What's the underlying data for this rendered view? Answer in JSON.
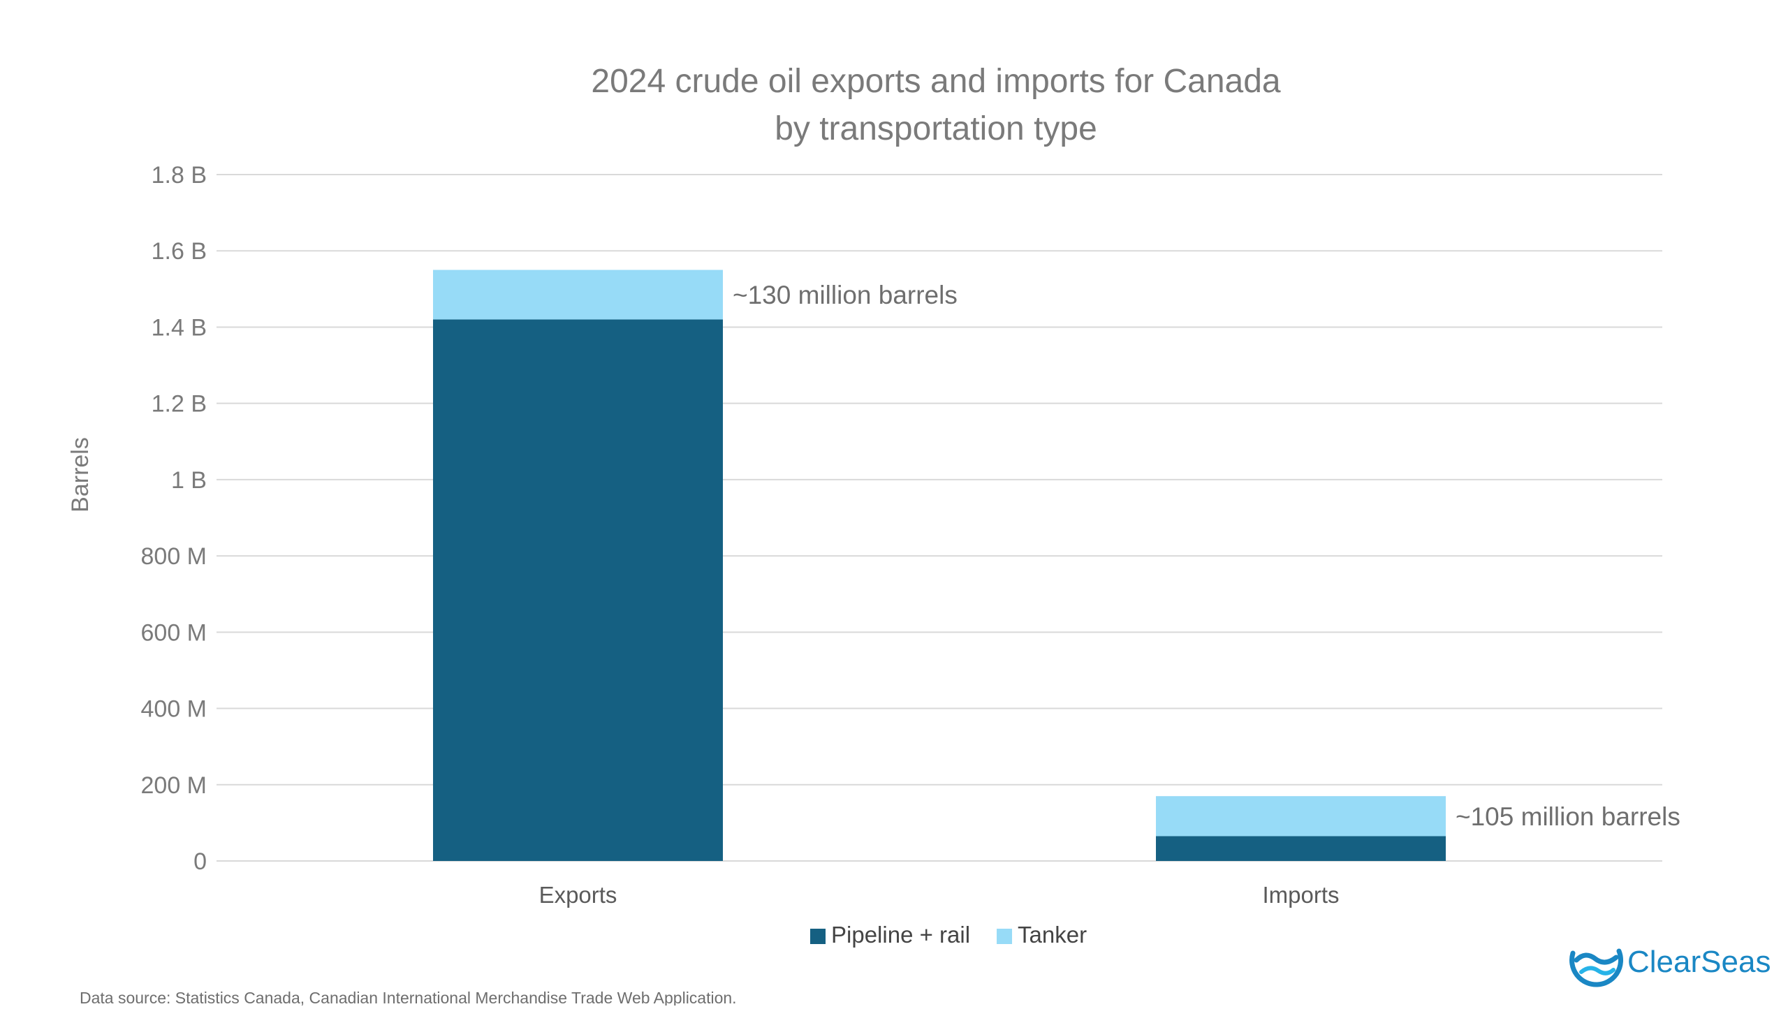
{
  "chart_data": {
    "type": "bar",
    "stacked": true,
    "title": [
      "2024 crude oil exports and imports for Canada",
      "by transportation type"
    ],
    "ylabel": "Barrels",
    "xlabel": "",
    "ylim": [
      0,
      1800000000
    ],
    "yticks": [
      {
        "value": 0,
        "label": "0"
      },
      {
        "value": 200000000,
        "label": "200 M"
      },
      {
        "value": 400000000,
        "label": "400 M"
      },
      {
        "value": 600000000,
        "label": "600 M"
      },
      {
        "value": 800000000,
        "label": "800 M"
      },
      {
        "value": 1000000000,
        "label": "1 B"
      },
      {
        "value": 1200000000,
        "label": "1.2 B"
      },
      {
        "value": 1400000000,
        "label": "1.4 B"
      },
      {
        "value": 1600000000,
        "label": "1.6 B"
      },
      {
        "value": 1800000000,
        "label": "1.8 B"
      }
    ],
    "grid": true,
    "categories": [
      "Exports",
      "Imports"
    ],
    "series": [
      {
        "name": "Pipeline + rail",
        "color": "#156082",
        "values": [
          1420000000,
          65000000
        ]
      },
      {
        "name": "Tanker",
        "color": "#97dbf7",
        "values": [
          130000000,
          105000000
        ]
      }
    ],
    "annotations": [
      {
        "category": "Exports",
        "text": "~130 million barrels"
      },
      {
        "category": "Imports",
        "text": "~105 million barrels"
      }
    ],
    "legend": "bottom-center"
  },
  "source": "Data source: Statistics Canada, Canadian International Merchandise Trade Web Application.",
  "brand": {
    "name": "ClearSeas",
    "name_part1": "Clear",
    "name_part2": "Seas",
    "color": "#1a87c4",
    "icon": "wave-circle-icon"
  }
}
